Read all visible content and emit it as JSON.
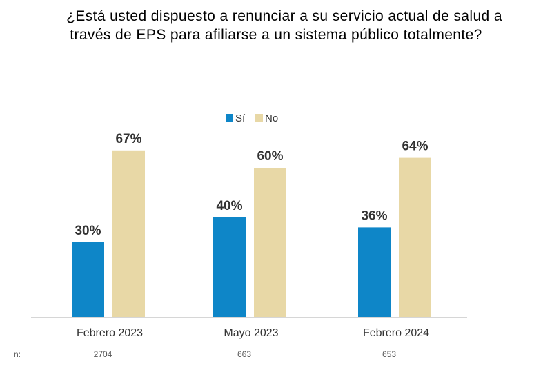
{
  "chart_data": {
    "type": "bar",
    "title_lines": [
      "¿Está usted dispuesto a renunciar a su servicio actual de salud a",
      "través de EPS para afiliarse a un sistema público totalmente?"
    ],
    "categories": [
      "Febrero 2023",
      "Mayo 2023",
      "Febrero 2024"
    ],
    "series": [
      {
        "name": "Sí",
        "color": "#0E86C8",
        "values": [
          30,
          40,
          36
        ]
      },
      {
        "name": "No",
        "color": "#E8D8A6",
        "values": [
          67,
          60,
          64
        ]
      }
    ],
    "value_suffix": "%",
    "n_label": "n:",
    "n_values": [
      "2704",
      "663",
      "653"
    ],
    "ylim": [
      0,
      100
    ],
    "legend_position": "top",
    "xlabel": "",
    "ylabel": ""
  }
}
